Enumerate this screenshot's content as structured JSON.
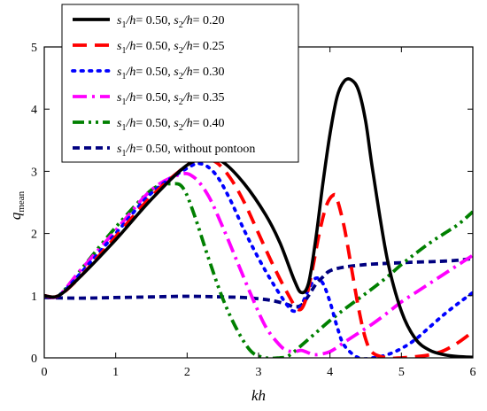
{
  "chart_data": {
    "type": "line",
    "title": "",
    "xlabel": "kh",
    "ylabel_main": "q",
    "ylabel_sub": "mean",
    "xlim": [
      0,
      6
    ],
    "ylim": [
      0,
      5
    ],
    "xticks": [
      0,
      1,
      2,
      3,
      4,
      5,
      6
    ],
    "yticks": [
      0,
      1,
      2,
      3,
      4,
      5
    ],
    "grid": false,
    "legend_placement": "top-left",
    "series": [
      {
        "name": "s1/h = 0.50, s2/h = 0.20",
        "legend": {
          "a": "s",
          "a_sub": "1",
          "b": "/h",
          "c": "= 0.50, ",
          "d": "s",
          "d_sub": "2",
          "e": "/h",
          "f": "= 0.20"
        },
        "color": "#000000",
        "dash": "solid",
        "x": [
          0,
          0.2,
          0.5,
          1.0,
          1.5,
          2.0,
          2.3,
          2.5,
          2.8,
          3.1,
          3.3,
          3.5,
          3.6,
          3.7,
          3.8,
          3.9,
          4.0,
          4.1,
          4.2,
          4.3,
          4.4,
          4.5,
          4.6,
          4.8,
          5.0,
          5.2,
          5.4,
          5.6,
          5.8,
          6.0
        ],
        "y": [
          1.0,
          1.0,
          1.3,
          1.9,
          2.55,
          3.1,
          3.2,
          3.15,
          2.8,
          2.3,
          1.85,
          1.25,
          1.05,
          1.2,
          1.9,
          2.8,
          3.6,
          4.2,
          4.45,
          4.47,
          4.3,
          3.8,
          3.0,
          1.6,
          0.75,
          0.3,
          0.12,
          0.05,
          0.02,
          0.01
        ]
      },
      {
        "name": "s1/h = 0.50, s2/h = 0.25",
        "legend": {
          "a": "s",
          "a_sub": "1",
          "b": "/h",
          "c": "= 0.50, ",
          "d": "s",
          "d_sub": "2",
          "e": "/h",
          "f": "= 0.25"
        },
        "color": "#ff0000",
        "dash": "long",
        "x": [
          0,
          0.2,
          0.5,
          1.0,
          1.5,
          2.0,
          2.2,
          2.4,
          2.6,
          2.8,
          3.0,
          3.2,
          3.4,
          3.55,
          3.65,
          3.75,
          3.85,
          3.95,
          4.05,
          4.1,
          4.2,
          4.3,
          4.4,
          4.5,
          4.6,
          4.8,
          5.0,
          5.2,
          5.4,
          5.6,
          5.8,
          6.0
        ],
        "y": [
          1.0,
          1.0,
          1.3,
          1.95,
          2.6,
          3.1,
          3.18,
          3.15,
          2.9,
          2.5,
          2.0,
          1.5,
          1.05,
          0.78,
          0.9,
          1.4,
          2.0,
          2.45,
          2.62,
          2.55,
          2.1,
          1.45,
          0.8,
          0.3,
          0.08,
          0.0,
          0.0,
          0.02,
          0.05,
          0.12,
          0.25,
          0.42
        ]
      },
      {
        "name": "s1/h = 0.50, s2/h = 0.30",
        "legend": {
          "a": "s",
          "a_sub": "1",
          "b": "/h",
          "c": "= 0.50, ",
          "d": "s",
          "d_sub": "2",
          "e": "/h",
          "f": "= 0.30"
        },
        "color": "#0000ff",
        "dash": "dot",
        "x": [
          0,
          0.2,
          0.5,
          1.0,
          1.5,
          2.0,
          2.2,
          2.4,
          2.6,
          2.8,
          3.0,
          3.2,
          3.4,
          3.5,
          3.6,
          3.7,
          3.8,
          3.9,
          4.0,
          4.1,
          4.2,
          4.4,
          4.6,
          4.8,
          5.0,
          5.2,
          5.4,
          5.6,
          5.8,
          6.0
        ],
        "y": [
          1.0,
          1.0,
          1.35,
          2.0,
          2.65,
          3.05,
          3.12,
          2.95,
          2.55,
          2.05,
          1.6,
          1.2,
          0.85,
          0.75,
          0.85,
          1.1,
          1.28,
          1.2,
          0.9,
          0.5,
          0.2,
          0.0,
          0.0,
          0.05,
          0.15,
          0.3,
          0.5,
          0.7,
          0.88,
          1.05
        ]
      },
      {
        "name": "s1/h = 0.50, s2/h = 0.35",
        "legend": {
          "a": "s",
          "a_sub": "1",
          "b": "/h",
          "c": "= 0.50, ",
          "d": "s",
          "d_sub": "2",
          "e": "/h",
          "f": "= 0.35"
        },
        "color": "#ff00ff",
        "dash": "dashdot",
        "x": [
          0,
          0.2,
          0.5,
          1.0,
          1.5,
          1.9,
          2.1,
          2.3,
          2.5,
          2.7,
          2.9,
          3.1,
          3.3,
          3.4,
          3.5,
          3.6,
          3.7,
          3.8,
          4.0,
          4.2,
          4.4,
          4.6,
          4.8,
          5.0,
          5.2,
          5.4,
          5.6,
          5.8,
          6.0
        ],
        "y": [
          1.0,
          1.0,
          1.4,
          2.05,
          2.7,
          2.95,
          2.9,
          2.6,
          2.1,
          1.55,
          1.0,
          0.5,
          0.2,
          0.12,
          0.1,
          0.12,
          0.08,
          0.05,
          0.1,
          0.25,
          0.4,
          0.55,
          0.72,
          0.9,
          1.05,
          1.2,
          1.35,
          1.5,
          1.65
        ]
      },
      {
        "name": "s1/h = 0.50, s2/h = 0.40",
        "legend": {
          "a": "s",
          "a_sub": "1",
          "b": "/h",
          "c": "= 0.50, ",
          "d": "s",
          "d_sub": "2",
          "e": "/h",
          "f": "= 0.40"
        },
        "color": "#008000",
        "dash": "dashdotdot",
        "x": [
          0,
          0.2,
          0.5,
          1.0,
          1.5,
          1.8,
          1.95,
          2.1,
          2.3,
          2.5,
          2.7,
          2.9,
          3.1,
          3.3,
          3.4,
          3.5,
          3.6,
          3.8,
          4.0,
          4.2,
          4.4,
          4.6,
          4.8,
          5.0,
          5.2,
          5.4,
          5.6,
          5.8,
          6.0
        ],
        "y": [
          1.0,
          1.0,
          1.4,
          2.1,
          2.7,
          2.8,
          2.72,
          2.3,
          1.6,
          0.95,
          0.45,
          0.1,
          0.0,
          0.0,
          0.02,
          0.1,
          0.2,
          0.4,
          0.6,
          0.78,
          0.95,
          1.12,
          1.3,
          1.5,
          1.68,
          1.85,
          2.0,
          2.15,
          2.35
        ]
      },
      {
        "name": "s1/h = 0.50, without pontoon",
        "legend": {
          "a": "s",
          "a_sub": "1",
          "b": "/h",
          "c": "= 0.50, without pontoon",
          "d": "",
          "d_sub": "",
          "e": "",
          "f": ""
        },
        "color": "#000080",
        "dash": "short",
        "x": [
          0,
          0.5,
          1.0,
          1.5,
          2.0,
          2.5,
          2.8,
          3.0,
          3.2,
          3.4,
          3.5,
          3.6,
          3.7,
          3.8,
          3.9,
          4.0,
          4.2,
          4.5,
          4.8,
          5.0,
          5.2,
          5.5,
          5.8,
          6.0
        ],
        "y": [
          0.97,
          0.96,
          0.97,
          0.98,
          0.99,
          0.98,
          0.97,
          0.95,
          0.92,
          0.86,
          0.82,
          0.85,
          1.0,
          1.18,
          1.3,
          1.4,
          1.46,
          1.5,
          1.52,
          1.53,
          1.54,
          1.55,
          1.57,
          1.6
        ]
      }
    ]
  }
}
